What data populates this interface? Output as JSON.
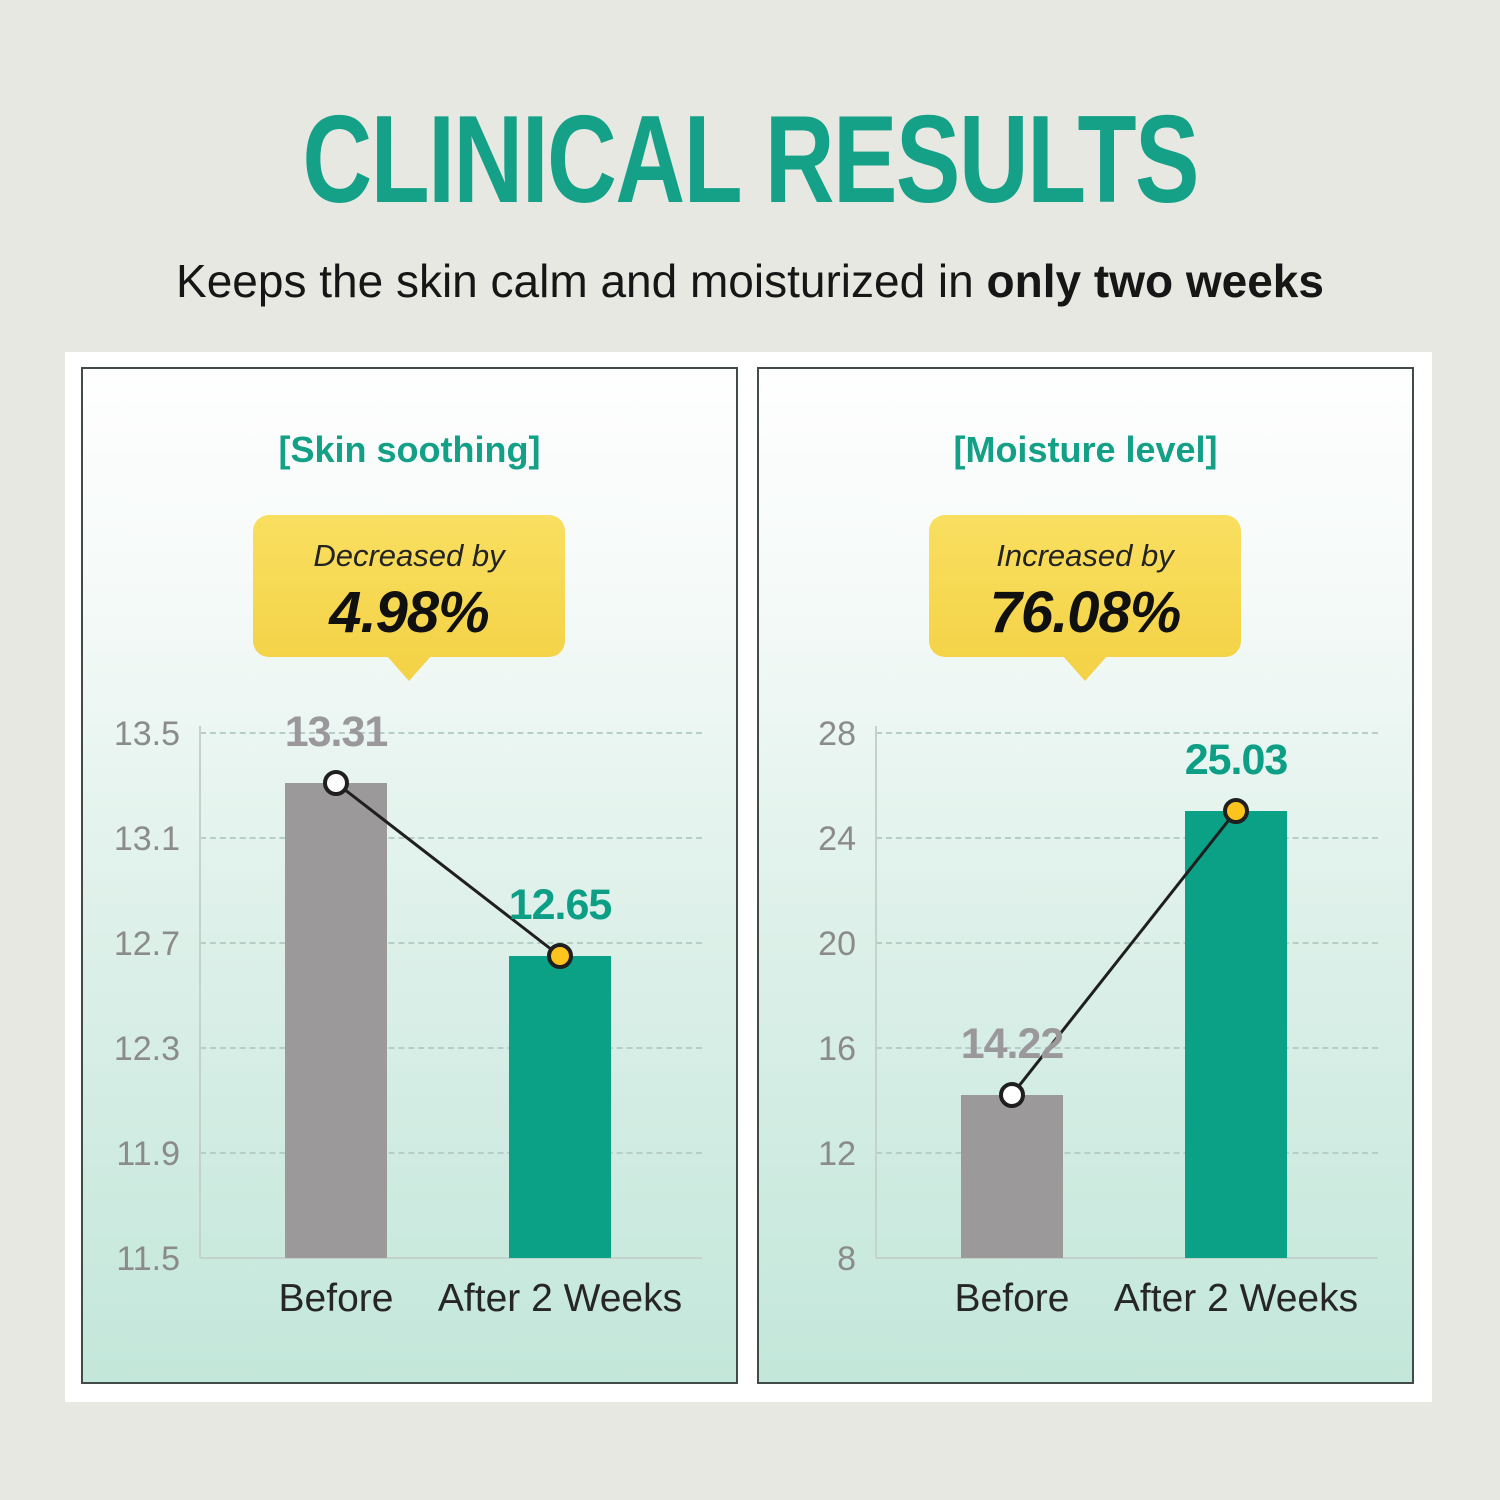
{
  "header": {
    "title": "CLINICAL RESULTS",
    "subtitle_regular": "Keeps the skin calm and moisturized in ",
    "subtitle_bold": "only two weeks"
  },
  "colors": {
    "accent_teal": "#14a188",
    "badge_yellow": "#f4d348",
    "bar_gray": "#9c999a",
    "bar_teal": "#0aa187",
    "marker_yellow": "#fcc41d",
    "marker_white": "#ffffff",
    "connector_black": "#1f1f1f",
    "page_background": "#e8e8e2"
  },
  "chart_data": [
    {
      "type": "bar",
      "title": "[Skin soothing]",
      "badge_label": "Decreased by",
      "badge_value": "4.98%",
      "categories": [
        "Before",
        "After 2 Weeks"
      ],
      "values": [
        13.31,
        12.65
      ],
      "value_labels": [
        "13.31",
        "12.65"
      ],
      "yticks": [
        "13.5",
        "13.1",
        "12.7",
        "12.3",
        "11.9",
        "11.5"
      ],
      "ylim": [
        11.5,
        13.58
      ],
      "bar_colors": [
        "#9c999a",
        "#0aa187"
      ],
      "value_label_colors": [
        "#9a989b",
        "#0c9f86"
      ],
      "marker_fills": [
        "#ffffff",
        "#fcc41d"
      ],
      "connector": true,
      "grid": "dashed horizontal",
      "legend": "none"
    },
    {
      "type": "bar",
      "title": "[Moisture level]",
      "badge_label": "Increased by",
      "badge_value": "76.08%",
      "categories": [
        "Before",
        "After 2 Weeks"
      ],
      "values": [
        14.22,
        25.03
      ],
      "value_labels": [
        "14.22",
        "25.03"
      ],
      "yticks": [
        "28",
        "24",
        "20",
        "16",
        "12",
        "8"
      ],
      "ylim": [
        8,
        28.3
      ],
      "bar_colors": [
        "#9c999a",
        "#0aa187"
      ],
      "value_label_colors": [
        "#9a989b",
        "#0c9f86"
      ],
      "marker_fills": [
        "#ffffff",
        "#fcc41d"
      ],
      "connector": true,
      "grid": "dashed horizontal",
      "legend": "none"
    }
  ]
}
